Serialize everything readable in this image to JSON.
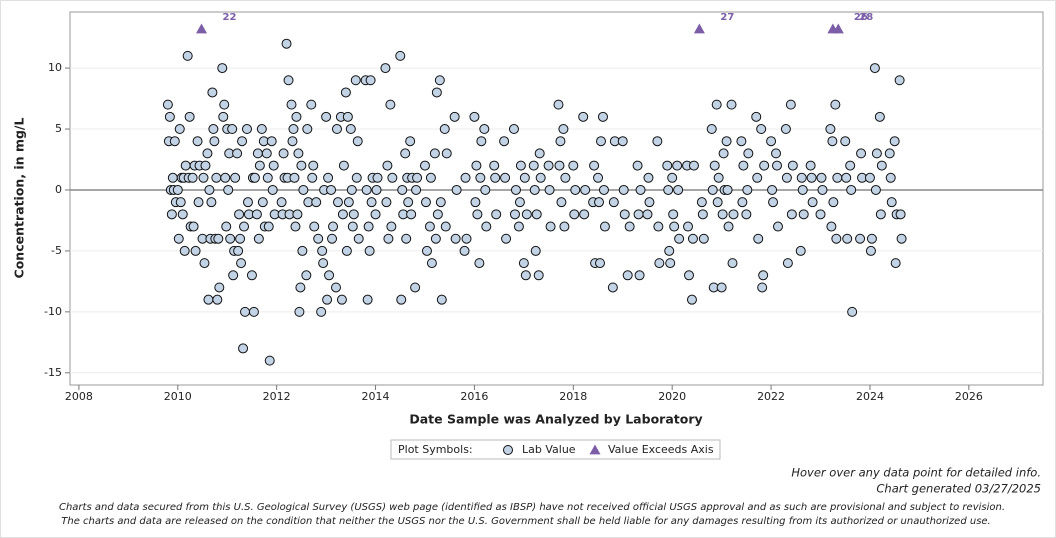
{
  "chart_data": {
    "type": "scatter",
    "y_label": "Concentration, in mg/L",
    "x_label": "Date Sample was Analyzed by Laboratory",
    "legend_title": "Plot Symbols:",
    "xlim": [
      2007.82,
      2027.5
    ],
    "xticks": [
      2008,
      2010,
      2012,
      2014,
      2016,
      2018,
      2020,
      2022,
      2024,
      2026
    ],
    "ylim": [
      -16,
      14.6
    ],
    "yticks": [
      -15,
      -10,
      -5,
      0,
      5,
      10
    ],
    "reference_y": 0,
    "grid": true,
    "series": [
      {
        "name": "Lab Value",
        "color": "#c3d3e6",
        "x": [
          2009.8,
          2009.84,
          2009.82,
          2009.86,
          2009.88,
          2009.9,
          2009.94,
          2009.92,
          2009.96,
          2010.0,
          2010.04,
          2010.02,
          2010.06,
          2010.08,
          2010.1,
          2010.14,
          2010.12,
          2010.16,
          2010.2,
          2010.24,
          2010.22,
          2010.26,
          2010.3,
          2010.34,
          2010.32,
          2010.36,
          2010.4,
          2010.44,
          2010.42,
          2010.5,
          2010.54,
          2010.52,
          2010.56,
          2010.6,
          2010.64,
          2010.62,
          2010.66,
          2010.68,
          2010.7,
          2010.74,
          2010.72,
          2010.76,
          2010.78,
          2010.8,
          2010.84,
          2010.82,
          2010.9,
          2010.94,
          2010.92,
          2010.96,
          2010.98,
          2011.0,
          2011.04,
          2011.02,
          2011.06,
          2011.1,
          2011.14,
          2011.12,
          2011.16,
          2011.2,
          2011.24,
          2011.22,
          2011.26,
          2011.28,
          2011.3,
          2011.34,
          2011.32,
          2011.36,
          2011.4,
          2011.44,
          2011.42,
          2011.5,
          2011.54,
          2011.52,
          2011.56,
          2011.6,
          2011.64,
          2011.62,
          2011.66,
          2011.7,
          2011.74,
          2011.72,
          2011.76,
          2011.8,
          2011.84,
          2011.82,
          2011.86,
          2011.9,
          2011.94,
          2011.92,
          2011.96,
          2012.1,
          2012.14,
          2012.12,
          2012.16,
          2012.2,
          2012.24,
          2012.22,
          2012.26,
          2012.3,
          2012.34,
          2012.32,
          2012.36,
          2012.38,
          2012.4,
          2012.44,
          2012.42,
          2012.46,
          2012.48,
          2012.5,
          2012.54,
          2012.52,
          2012.6,
          2012.64,
          2012.62,
          2012.7,
          2012.74,
          2012.72,
          2012.76,
          2012.8,
          2012.84,
          2012.9,
          2012.94,
          2012.92,
          2012.96,
          2013.0,
          2013.04,
          2013.02,
          2013.06,
          2013.1,
          2013.14,
          2013.12,
          2013.2,
          2013.24,
          2013.22,
          2013.3,
          2013.34,
          2013.32,
          2013.36,
          2013.4,
          2013.44,
          2013.42,
          2013.46,
          2013.5,
          2013.54,
          2013.52,
          2013.56,
          2013.6,
          2013.64,
          2013.62,
          2013.66,
          2013.8,
          2013.84,
          2013.82,
          2013.86,
          2013.88,
          2013.9,
          2013.94,
          2013.92,
          2014.0,
          2014.04,
          2014.02,
          2014.2,
          2014.24,
          2014.22,
          2014.26,
          2014.3,
          2014.34,
          2014.32,
          2014.5,
          2014.54,
          2014.52,
          2014.56,
          2014.6,
          2014.64,
          2014.62,
          2014.66,
          2014.7,
          2014.74,
          2014.72,
          2014.8,
          2014.84,
          2014.82,
          2015.0,
          2015.04,
          2015.02,
          2015.1,
          2015.14,
          2015.12,
          2015.2,
          2015.24,
          2015.22,
          2015.26,
          2015.3,
          2015.34,
          2015.32,
          2015.4,
          2015.44,
          2015.42,
          2015.6,
          2015.64,
          2015.62,
          2015.8,
          2015.84,
          2015.82,
          2016.0,
          2016.04,
          2016.02,
          2016.06,
          2016.1,
          2016.14,
          2016.12,
          2016.2,
          2016.24,
          2016.22,
          2016.4,
          2016.44,
          2016.42,
          2016.6,
          2016.64,
          2016.62,
          2016.8,
          2016.84,
          2016.82,
          2016.9,
          2016.94,
          2016.92,
          2017.0,
          2017.04,
          2017.02,
          2017.06,
          2017.2,
          2017.24,
          2017.22,
          2017.26,
          2017.3,
          2017.34,
          2017.32,
          2017.5,
          2017.54,
          2017.52,
          2017.7,
          2017.74,
          2017.72,
          2017.76,
          2017.8,
          2017.84,
          2017.82,
          2018.0,
          2018.04,
          2018.02,
          2018.2,
          2018.24,
          2018.22,
          2018.4,
          2018.44,
          2018.42,
          2018.5,
          2018.54,
          2018.52,
          2018.56,
          2018.6,
          2018.64,
          2018.62,
          2018.8,
          2018.84,
          2018.82,
          2019.0,
          2019.04,
          2019.02,
          2019.1,
          2019.14,
          2019.3,
          2019.34,
          2019.32,
          2019.36,
          2019.5,
          2019.54,
          2019.52,
          2019.7,
          2019.74,
          2019.72,
          2019.9,
          2019.94,
          2019.92,
          2019.96,
          2020.0,
          2020.04,
          2020.02,
          2020.1,
          2020.14,
          2020.12,
          2020.3,
          2020.34,
          2020.32,
          2020.4,
          2020.44,
          2020.42,
          2020.6,
          2020.64,
          2020.62,
          2020.8,
          2020.84,
          2020.82,
          2020.86,
          2020.9,
          2020.94,
          2020.92,
          2021.0,
          2021.04,
          2021.02,
          2021.06,
          2021.1,
          2021.14,
          2021.12,
          2021.2,
          2021.24,
          2021.22,
          2021.4,
          2021.44,
          2021.42,
          2021.5,
          2021.54,
          2021.52,
          2021.7,
          2021.74,
          2021.72,
          2021.8,
          2021.84,
          2021.82,
          2021.86,
          2022.0,
          2022.04,
          2022.02,
          2022.1,
          2022.14,
          2022.12,
          2022.3,
          2022.34,
          2022.32,
          2022.4,
          2022.44,
          2022.42,
          2022.6,
          2022.64,
          2022.62,
          2022.66,
          2022.8,
          2022.84,
          2022.82,
          2023.0,
          2023.04,
          2023.02,
          2023.2,
          2023.24,
          2023.22,
          2023.26,
          2023.3,
          2023.34,
          2023.32,
          2023.5,
          2023.54,
          2023.52,
          2023.6,
          2023.64,
          2023.62,
          2023.8,
          2023.84,
          2023.82,
          2024.0,
          2024.04,
          2024.02,
          2024.1,
          2024.14,
          2024.12,
          2024.2,
          2024.24,
          2024.22,
          2024.4,
          2024.44,
          2024.42,
          2024.5,
          2024.54,
          2024.52,
          2024.6,
          2024.64,
          2024.62
        ],
        "values": [
          7,
          6,
          4,
          0,
          -2,
          1,
          4,
          0,
          -1,
          0,
          5,
          -4,
          -1,
          1,
          -2,
          -5,
          1,
          2,
          11,
          6,
          1,
          -3,
          1,
          2,
          -3,
          -5,
          4,
          2,
          -1,
          -4,
          -6,
          1,
          2,
          3,
          0,
          -9,
          -4,
          -1,
          8,
          4,
          5,
          -4,
          1,
          -9,
          -8,
          -4,
          10,
          7,
          6,
          1,
          -3,
          5,
          3,
          0,
          -4,
          5,
          -5,
          -7,
          1,
          3,
          -2,
          -5,
          -4,
          -6,
          4,
          -3,
          -13,
          -10,
          5,
          -2,
          -1,
          -7,
          -10,
          1,
          1,
          -2,
          -4,
          3,
          2,
          5,
          4,
          -1,
          -3,
          3,
          -3,
          1,
          -14,
          4,
          2,
          0,
          -2,
          -1,
          3,
          -2,
          1,
          12,
          9,
          1,
          -2,
          7,
          5,
          4,
          1,
          -3,
          6,
          3,
          -2,
          -10,
          -8,
          2,
          0,
          -5,
          -7,
          -1,
          5,
          7,
          2,
          1,
          -3,
          -1,
          -4,
          -10,
          -6,
          -5,
          0,
          6,
          1,
          -9,
          -7,
          0,
          -3,
          -4,
          -8,
          -1,
          5,
          6,
          -2,
          -9,
          2,
          8,
          6,
          -5,
          -1,
          5,
          -3,
          0,
          -2,
          9,
          4,
          1,
          -4,
          9,
          -9,
          0,
          -3,
          -5,
          9,
          1,
          -1,
          -2,
          1,
          0,
          10,
          2,
          -1,
          -4,
          7,
          1,
          -3,
          11,
          0,
          -9,
          -2,
          3,
          1,
          -4,
          -1,
          4,
          1,
          -2,
          -8,
          1,
          0,
          2,
          -5,
          -1,
          -3,
          -6,
          1,
          3,
          8,
          -4,
          -2,
          9,
          -9,
          -1,
          5,
          3,
          -3,
          6,
          0,
          -4,
          -5,
          -4,
          1,
          6,
          2,
          -1,
          -2,
          -6,
          4,
          1,
          5,
          -3,
          0,
          2,
          -2,
          1,
          4,
          -4,
          1,
          5,
          0,
          -2,
          -3,
          2,
          -1,
          -6,
          -7,
          1,
          -2,
          2,
          -5,
          0,
          -2,
          -7,
          1,
          3,
          2,
          -3,
          0,
          7,
          4,
          2,
          -1,
          5,
          1,
          -3,
          2,
          0,
          -2,
          6,
          0,
          -2,
          -1,
          -6,
          2,
          1,
          -6,
          -1,
          4,
          6,
          -3,
          0,
          -8,
          4,
          -1,
          4,
          -2,
          0,
          -7,
          -3,
          2,
          -7,
          -2,
          0,
          -2,
          -1,
          1,
          4,
          -6,
          -3,
          2,
          -5,
          0,
          -6,
          1,
          -3,
          -2,
          2,
          -4,
          0,
          2,
          -7,
          -3,
          -9,
          2,
          -4,
          -1,
          -4,
          -2,
          5,
          -8,
          0,
          2,
          7,
          1,
          -1,
          -8,
          3,
          -2,
          0,
          4,
          -3,
          0,
          7,
          -2,
          -6,
          4,
          2,
          -1,
          -2,
          3,
          0,
          6,
          -4,
          1,
          5,
          -7,
          -8,
          2,
          4,
          -1,
          0,
          3,
          -3,
          2,
          5,
          -6,
          1,
          7,
          2,
          -2,
          -5,
          0,
          1,
          -2,
          2,
          -1,
          1,
          -2,
          0,
          1,
          5,
          4,
          -3,
          -1,
          7,
          1,
          -4,
          4,
          -4,
          1,
          2,
          -10,
          0,
          -4,
          1,
          3,
          1,
          -4,
          -5,
          10,
          3,
          0,
          6,
          2,
          -2,
          3,
          -1,
          1,
          4,
          -2,
          -6,
          9,
          -4,
          -2
        ]
      },
      {
        "name": "Value Exceeds Axis",
        "color": "#7b5ea7",
        "x": [
          2010.48,
          2020.55,
          2023.25,
          2023.36
        ],
        "values": [
          22,
          27,
          26,
          28
        ]
      }
    ],
    "notes": [
      "Hover over any data point for detailed info.",
      "Chart generated 03/27/2025"
    ],
    "disclaimer": [
      "Charts and data secured from this U.S. Geological Survey (USGS) web page (identified as IBSP) have not received official USGS approval and as such are provisional and subject to revision.",
      "The charts and data are released on the condition that neither the USGS nor the U.S. Government shall be held liable for any damages resulting from its authorized or unauthorized use."
    ]
  }
}
